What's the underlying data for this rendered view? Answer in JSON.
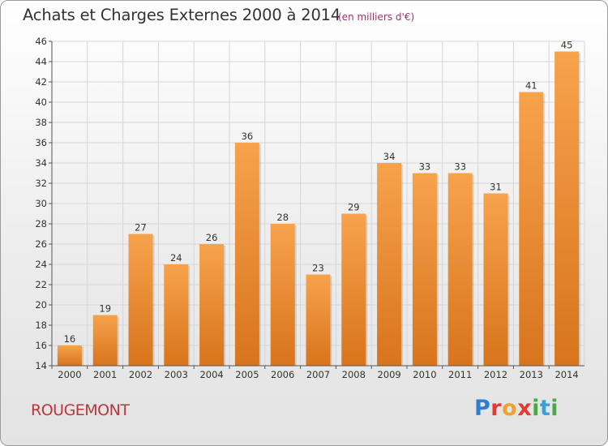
{
  "header": {
    "title": "Achats et Charges Externes 2000 à 2014",
    "unit": "(en milliers d'€)"
  },
  "footer": {
    "place": "ROUGEMONT",
    "logo": [
      "P",
      "r",
      "o",
      "x",
      "i",
      "t",
      "i"
    ]
  },
  "colors": {
    "bar_top": "#f7a34c",
    "bar_bottom": "#d8741c",
    "grid": "#d6d6d6",
    "axis": "#555555"
  },
  "chart_data": {
    "type": "bar",
    "title": "Achats et Charges Externes 2000 à 2014",
    "subtitle": "(en milliers d'€)",
    "xlabel": "",
    "ylabel": "",
    "categories": [
      "2000",
      "2001",
      "2002",
      "2003",
      "2004",
      "2005",
      "2006",
      "2007",
      "2008",
      "2009",
      "2010",
      "2011",
      "2012",
      "2013",
      "2014"
    ],
    "values": [
      16,
      19,
      27,
      24,
      26,
      36,
      28,
      23,
      29,
      34,
      33,
      33,
      31,
      41,
      45
    ],
    "ylim": [
      14,
      46
    ],
    "yticks": [
      14,
      16,
      18,
      20,
      22,
      24,
      26,
      28,
      30,
      32,
      34,
      36,
      38,
      40,
      42,
      44,
      46
    ],
    "grid": true,
    "data_labels": true
  }
}
